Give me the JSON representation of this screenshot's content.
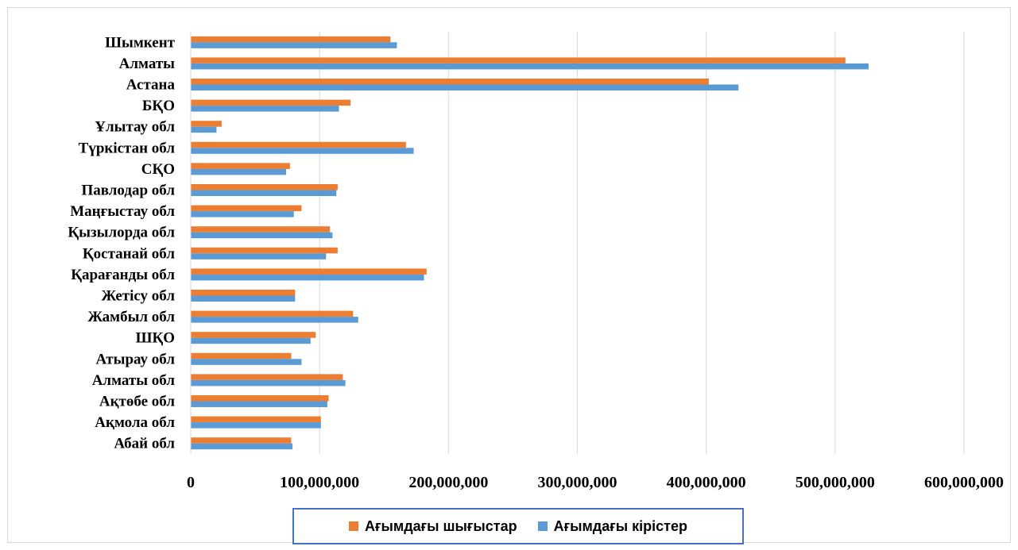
{
  "chart_data": {
    "type": "bar",
    "orientation": "horizontal",
    "title": "",
    "xlabel": "",
    "ylabel": "",
    "xlim": [
      0,
      600000000
    ],
    "ticks": [
      0,
      100000000,
      200000000,
      300000000,
      400000000,
      500000000,
      600000000
    ],
    "tick_labels": [
      "0",
      "100,000,000",
      "200,000,000",
      "300,000,000",
      "400,000,000",
      "500,000,000",
      "600,000,000"
    ],
    "grid": "vertical",
    "legend_position": "bottom",
    "categories": [
      "Шымкент",
      "Алматы",
      "Астана",
      "БҚО",
      "Ұлытау обл",
      "Түркістан обл",
      "СҚО",
      "Павлодар обл",
      "Маңғыстау обл",
      "Қызылорда обл",
      "Қостанай обл",
      "Қарағанды обл",
      "Жетісу обл",
      "Жамбыл обл",
      "ШҚО",
      "Атырау обл",
      "Алматы обл",
      "Ақтөбе обл",
      "Ақмола обл",
      "Абай обл"
    ],
    "series": [
      {
        "name": "Ағымдағы шығыстар",
        "color": "#ed7d31",
        "values": [
          155000000,
          508000000,
          402000000,
          124000000,
          24000000,
          167000000,
          77000000,
          114000000,
          86000000,
          108000000,
          114000000,
          183000000,
          81000000,
          126000000,
          97000000,
          78000000,
          118000000,
          107000000,
          101000000,
          78000000
        ]
      },
      {
        "name": "Ағымдағы кірістер",
        "color": "#5b9bd5",
        "values": [
          160000000,
          526000000,
          425000000,
          115000000,
          20000000,
          173000000,
          74000000,
          113000000,
          80000000,
          110000000,
          105000000,
          181000000,
          81000000,
          130000000,
          93000000,
          86000000,
          120000000,
          106000000,
          101000000,
          79000000
        ]
      }
    ]
  }
}
